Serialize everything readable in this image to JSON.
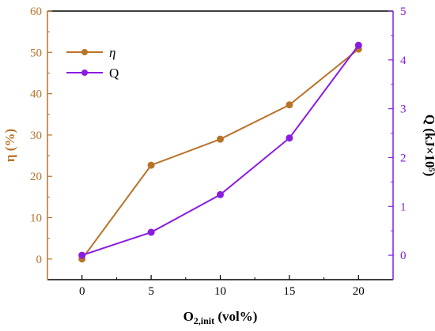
{
  "chart_data": {
    "type": "line",
    "x": [
      0,
      5,
      10,
      15,
      20
    ],
    "xlim": [
      -2.5,
      22.5
    ],
    "xticks": [
      "0",
      "5",
      "10",
      "15",
      "20"
    ],
    "xlabel": {
      "main": "O",
      "sub": "2,init",
      "rest": " (vol%)"
    },
    "left_axis": {
      "label": "η (%)",
      "ylim": [
        -5,
        60
      ],
      "ticks": [
        "0",
        "10",
        "20",
        "30",
        "40",
        "50",
        "60"
      ]
    },
    "right_axis": {
      "label": "Q (kJ×10⁵)",
      "ylim": [
        -0.5,
        5
      ],
      "ticks": [
        "0",
        "1",
        "2",
        "3",
        "4",
        "5"
      ]
    },
    "series": [
      {
        "name": "η",
        "axis": "left",
        "color": "#b8732a",
        "values": [
          0.0,
          22.7,
          29.0,
          37.3,
          50.8
        ]
      },
      {
        "name": "Q",
        "axis": "right",
        "color": "#8a1ce0",
        "values": [
          0.0,
          0.47,
          1.24,
          2.4,
          4.3
        ]
      }
    ],
    "legend": {
      "placement": "top-left"
    },
    "grid": false
  }
}
